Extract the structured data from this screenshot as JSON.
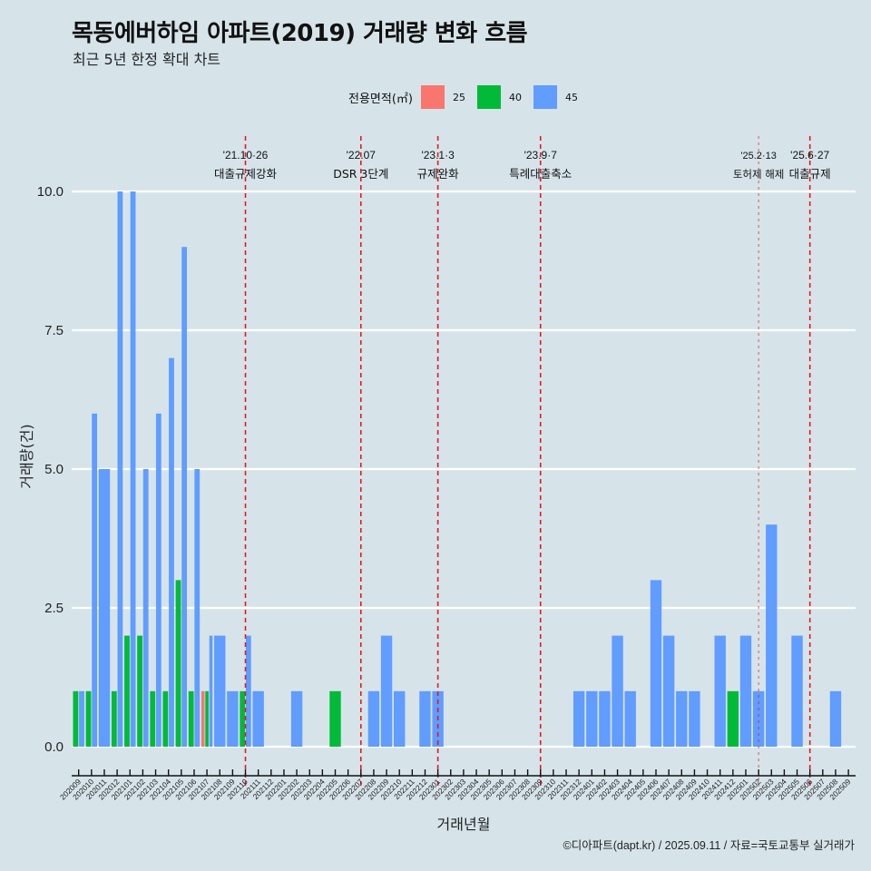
{
  "header": {
    "title": "목동에버하임 아파트(2019) 거래량 변화 흐름",
    "subtitle": "최근 5년 한정 확대 차트"
  },
  "legend": {
    "title": "전용면적(㎡)",
    "items": [
      {
        "label": "25",
        "color": "#f8766d"
      },
      {
        "label": "40",
        "color": "#00ba38"
      },
      {
        "label": "45",
        "color": "#619cff"
      }
    ]
  },
  "footer": {
    "credit": "©디아파트(dapt.kr) / 2025.09.11 / 자료=국토교통부 실거래가"
  },
  "chart_data": {
    "type": "bar",
    "title": "목동에버하임 아파트(2019) 거래량 변화 흐름",
    "subtitle": "최근 5년 한정 확대 차트",
    "xlabel": "거래년월",
    "ylabel": "거래량(건)",
    "ylim": [
      0,
      10
    ],
    "yticks": [
      "0.0",
      "2.5",
      "5.0",
      "7.5",
      "10.0"
    ],
    "ytick_values": [
      0,
      2.5,
      5,
      7.5,
      10
    ],
    "grid": true,
    "legend_position": "top",
    "categories": [
      "202009",
      "202010",
      "202011",
      "202012",
      "202101",
      "202102",
      "202103",
      "202104",
      "202105",
      "202106",
      "202107",
      "202108",
      "202109",
      "202110",
      "202111",
      "202112",
      "202201",
      "202202",
      "202203",
      "202204",
      "202205",
      "202206",
      "202207",
      "202208",
      "202209",
      "202210",
      "202211",
      "202212",
      "202301",
      "202302",
      "202303",
      "202304",
      "202305",
      "202306",
      "202307",
      "202308",
      "202309",
      "202310",
      "202311",
      "202312",
      "202401",
      "202402",
      "202403",
      "202404",
      "202405",
      "202406",
      "202407",
      "202408",
      "202409",
      "202410",
      "202411",
      "202412",
      "202501",
      "202502",
      "202503",
      "202504",
      "202505",
      "202506",
      "202507",
      "202508",
      "202509"
    ],
    "series": [
      {
        "name": "25",
        "color": "#f8766d",
        "values": [
          0,
          0,
          0,
          0,
          0,
          0,
          0,
          0,
          0,
          0,
          1,
          0,
          0,
          0,
          0,
          0,
          0,
          0,
          0,
          0,
          0,
          0,
          0,
          0,
          0,
          0,
          0,
          0,
          0,
          0,
          0,
          0,
          0,
          0,
          0,
          0,
          0,
          0,
          0,
          0,
          0,
          0,
          0,
          0,
          0,
          0,
          0,
          0,
          0,
          0,
          0,
          0,
          0,
          0,
          0,
          0,
          0,
          0,
          0,
          0,
          0
        ]
      },
      {
        "name": "40",
        "color": "#00ba38",
        "values": [
          1,
          1,
          0,
          1,
          2,
          2,
          1,
          1,
          3,
          1,
          1,
          0,
          0,
          1,
          0,
          0,
          0,
          0,
          0,
          0,
          1,
          0,
          0,
          0,
          0,
          0,
          0,
          0,
          0,
          0,
          0,
          0,
          0,
          0,
          0,
          0,
          0,
          0,
          0,
          0,
          0,
          0,
          0,
          0,
          0,
          0,
          0,
          0,
          0,
          0,
          0,
          1,
          0,
          0,
          0,
          0,
          0,
          0,
          0,
          0,
          0
        ]
      },
      {
        "name": "45",
        "color": "#619cff",
        "values": [
          1,
          6,
          5,
          10,
          10,
          5,
          6,
          7,
          9,
          5,
          2,
          2,
          1,
          2,
          1,
          0,
          0,
          1,
          0,
          0,
          0,
          0,
          0,
          1,
          2,
          1,
          0,
          1,
          1,
          0,
          0,
          0,
          0,
          0,
          0,
          0,
          0,
          0,
          0,
          1,
          1,
          1,
          2,
          1,
          0,
          3,
          2,
          1,
          1,
          0,
          2,
          0,
          2,
          1,
          4,
          0,
          2,
          0,
          0,
          1,
          0
        ]
      }
    ],
    "annotations": [
      {
        "category": "202110",
        "date": "'21.10·26",
        "label": "대출규제강화",
        "style": "bold"
      },
      {
        "category": "202207",
        "date": "'22.07",
        "label": "DSR 3단계",
        "style": "bold"
      },
      {
        "category": "202301",
        "date": "'23.1·3",
        "label": "규제완화",
        "style": "bold"
      },
      {
        "category": "202309",
        "date": "'23.9·7",
        "label": "특례대출축소",
        "style": "bold"
      },
      {
        "category": "202502",
        "date": "'25.2·13",
        "label": "토허제 해제",
        "style": "light"
      },
      {
        "category": "202506",
        "date": "'25.6·27",
        "label": "대출규제",
        "style": "bold"
      }
    ],
    "annotation_color": "#e41a1c"
  }
}
